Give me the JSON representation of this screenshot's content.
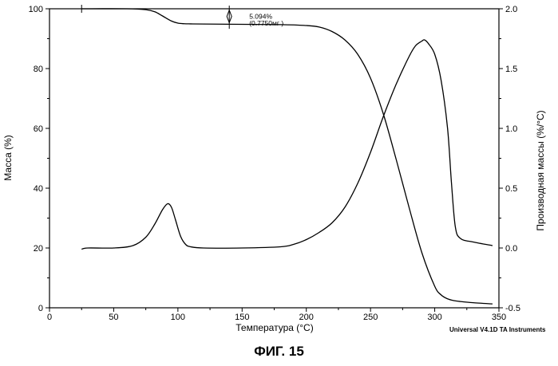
{
  "figure_caption": "ФИГ. 15",
  "instrument_note": "Universal V4.1D TA Instruments",
  "chart_data": {
    "type": "line",
    "xlabel": "Температура (°C)",
    "ylabel": "Масса (%)",
    "ylabel_right": "Производная массы (%/°C)",
    "xlim": [
      0,
      350
    ],
    "ylim": [
      0,
      100
    ],
    "ylim_right": [
      -0.5,
      2.0
    ],
    "grid": false,
    "x_ticks": [
      "0",
      "50",
      "100",
      "150",
      "200",
      "250",
      "300",
      "350"
    ],
    "y_ticks": [
      "0",
      "20",
      "40",
      "60",
      "80",
      "100"
    ],
    "y_ticks_right": [
      "-0.5",
      "0.0",
      "0.5",
      "1.0",
      "1.5",
      "2.0"
    ],
    "series": [
      {
        "axis": "left",
        "x": [
          25,
          60,
          75,
          82,
          88,
          95,
          100,
          105,
          110,
          120,
          150,
          180,
          200,
          210,
          220,
          230,
          240,
          250,
          260,
          270,
          280,
          290,
          300,
          305,
          310,
          315,
          320,
          330,
          345
        ],
        "y": [
          100,
          100,
          99.7,
          99,
          97.6,
          95.9,
          95.2,
          95.0,
          94.95,
          94.9,
          94.8,
          94.7,
          94.4,
          93.9,
          92.4,
          89.6,
          84.8,
          76.8,
          64.8,
          49.6,
          33.6,
          18.4,
          7.2,
          4.3,
          3.0,
          2.4,
          2.1,
          1.7,
          1.3
        ]
      },
      {
        "axis": "right",
        "x": [
          25,
          30,
          50,
          65,
          75,
          82,
          88,
          92,
          95,
          98,
          102,
          106,
          110,
          120,
          150,
          180,
          190,
          200,
          210,
          220,
          230,
          240,
          250,
          260,
          270,
          280,
          285,
          290,
          292,
          295,
          300,
          305,
          310,
          313,
          316,
          320,
          330,
          345
        ],
        "y": [
          -0.01,
          0.0,
          0.0,
          0.02,
          0.09,
          0.2,
          0.32,
          0.37,
          0.34,
          0.24,
          0.1,
          0.03,
          0.01,
          0.0,
          0.0,
          0.01,
          0.03,
          0.07,
          0.13,
          0.21,
          0.34,
          0.54,
          0.8,
          1.1,
          1.37,
          1.6,
          1.69,
          1.73,
          1.74,
          1.71,
          1.62,
          1.4,
          1.0,
          0.55,
          0.18,
          0.08,
          0.05,
          0.02
        ]
      }
    ],
    "annotations": [
      {
        "text": "5.094%",
        "x": 140,
        "y": 97.5
      },
      {
        "text": "(0.7750мг )",
        "x": 140,
        "y": 96
      }
    ]
  }
}
